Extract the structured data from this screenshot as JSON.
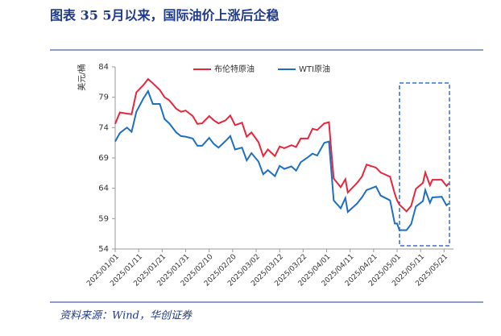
{
  "chart_data": {
    "type": "line",
    "title": "图表 35   5月以来，国际油价上涨后企稳",
    "source": "资料来源：Wind，华创证券",
    "y_label": "美元/桶",
    "x": [
      "2025/01/01",
      "2025/01/03",
      "2025/01/06",
      "2025/01/08",
      "2025/01/10",
      "2025/01/13",
      "2025/01/15",
      "2025/01/17",
      "2025/01/20",
      "2025/01/22",
      "2025/01/24",
      "2025/01/27",
      "2025/01/29",
      "2025/01/31",
      "2025/02/03",
      "2025/02/05",
      "2025/02/07",
      "2025/02/10",
      "2025/02/12",
      "2025/02/14",
      "2025/02/17",
      "2025/02/19",
      "2025/02/21",
      "2025/02/24",
      "2025/02/26",
      "2025/02/28",
      "2025/03/03",
      "2025/03/05",
      "2025/03/07",
      "2025/03/10",
      "2025/03/12",
      "2025/03/14",
      "2025/03/17",
      "2025/03/19",
      "2025/03/21",
      "2025/03/24",
      "2025/03/26",
      "2025/03/28",
      "2025/03/31",
      "2025/04/02",
      "2025/04/03",
      "2025/04/04",
      "2025/04/07",
      "2025/04/09",
      "2025/04/10",
      "2025/04/14",
      "2025/04/16",
      "2025/04/18",
      "2025/04/22",
      "2025/04/24",
      "2025/04/28",
      "2025/04/30",
      "2025/05/01",
      "2025/05/02",
      "2025/05/05",
      "2025/05/07",
      "2025/05/09",
      "2025/05/12",
      "2025/05/13",
      "2025/05/15",
      "2025/05/16",
      "2025/05/20",
      "2025/05/22",
      "2025/05/23"
    ],
    "series": [
      {
        "name": "布伦特原油",
        "color": "#e8253a",
        "values": [
          74.6,
          76.5,
          76.3,
          76.2,
          79.8,
          81.0,
          82.0,
          81.3,
          80.2,
          79.0,
          78.5,
          77.1,
          76.6,
          76.8,
          75.9,
          74.6,
          74.7,
          75.9,
          75.2,
          74.7,
          75.2,
          76.0,
          74.4,
          74.8,
          72.5,
          73.2,
          71.6,
          69.3,
          70.4,
          69.3,
          70.9,
          70.6,
          71.1,
          70.8,
          72.2,
          72.2,
          73.8,
          73.6,
          74.7,
          74.9,
          70.1,
          65.6,
          64.2,
          65.5,
          63.3,
          64.9,
          65.9,
          67.9,
          67.4,
          66.6,
          65.9,
          63.1,
          62.0,
          61.3,
          60.2,
          61.1,
          63.9,
          64.9,
          66.6,
          64.5,
          65.4,
          65.4,
          64.4,
          64.8
        ]
      },
      {
        "name": "WTI原油",
        "color": "#1f6fc0",
        "values": [
          71.7,
          73.1,
          74.0,
          73.3,
          76.6,
          78.8,
          80.0,
          77.9,
          77.9,
          75.4,
          74.7,
          73.2,
          72.6,
          72.5,
          72.2,
          71.0,
          71.0,
          72.3,
          71.3,
          70.7,
          71.8,
          72.6,
          70.4,
          70.7,
          68.6,
          69.8,
          68.4,
          66.3,
          67.0,
          66.0,
          67.7,
          67.2,
          67.6,
          66.9,
          68.3,
          69.1,
          69.7,
          69.4,
          71.5,
          71.7,
          66.9,
          62.0,
          60.7,
          62.4,
          60.1,
          61.5,
          62.5,
          63.7,
          64.3,
          62.8,
          62.0,
          58.2,
          58.2,
          57.1,
          57.1,
          58.1,
          61.0,
          61.9,
          63.7,
          61.6,
          62.5,
          62.6,
          61.2,
          61.5
        ]
      }
    ],
    "xlim": [
      "2025/01/01",
      "2025/05/25"
    ],
    "xticks": [
      "2025/01/01",
      "2025/01/11",
      "2025/01/21",
      "2025/01/31",
      "2025/02/10",
      "2025/02/20",
      "2025/03/02",
      "2025/03/12",
      "2025/03/22",
      "2025/04/01",
      "2025/04/11",
      "2025/04/21",
      "2025/05/01",
      "2025/05/11",
      "2025/05/21"
    ],
    "ylim": [
      54,
      84
    ],
    "yticks": [
      54,
      59,
      64,
      69,
      74,
      79,
      84
    ]
  }
}
